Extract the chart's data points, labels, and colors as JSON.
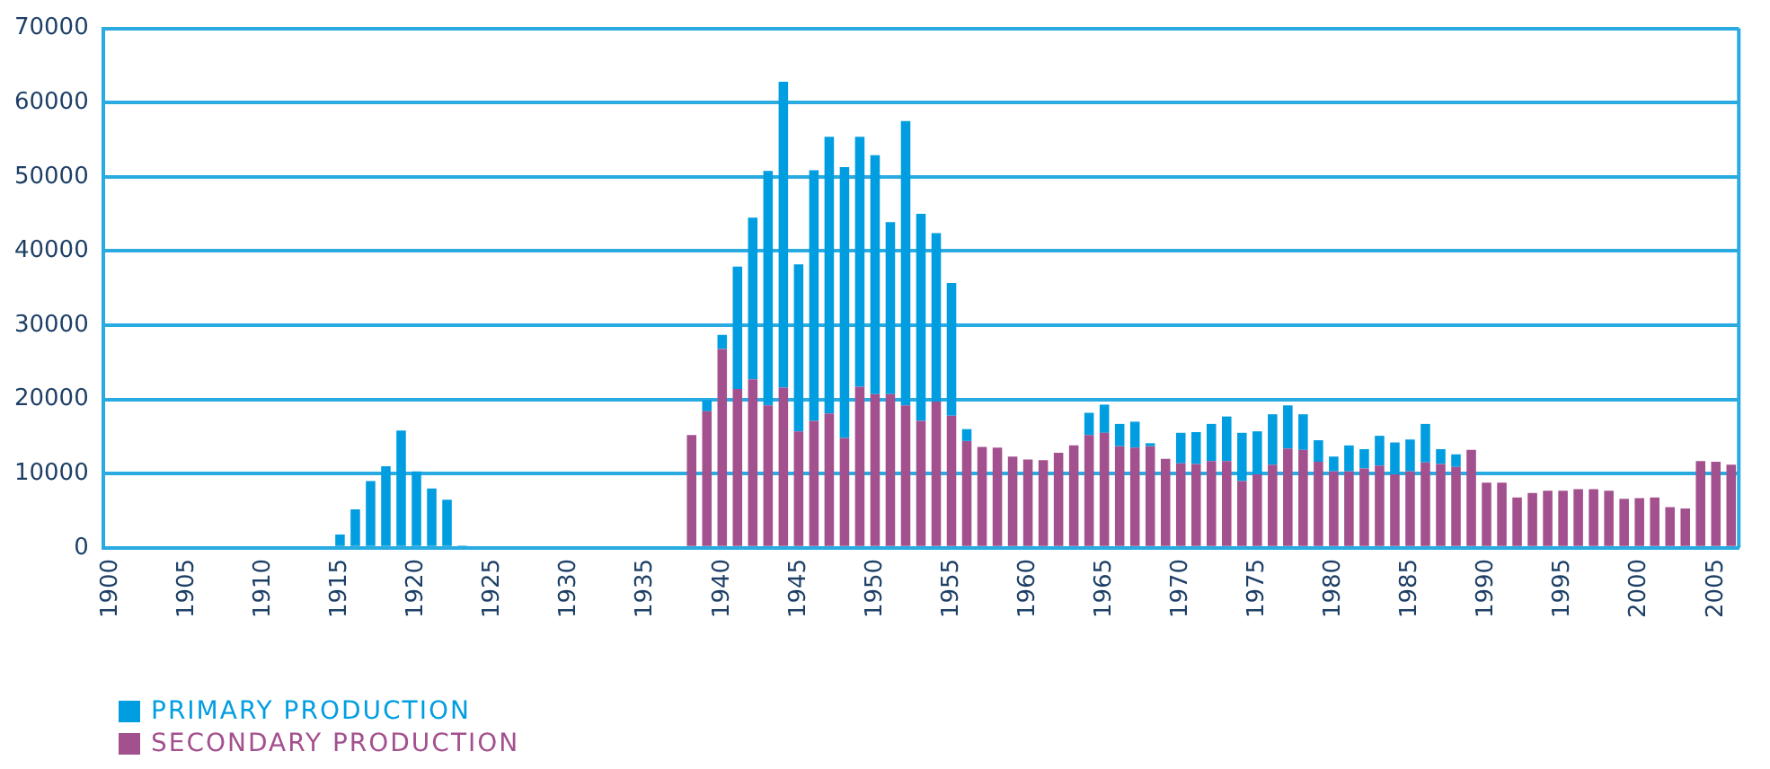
{
  "chart_data": {
    "type": "bar",
    "stacked": true,
    "categories": [
      "1900",
      null,
      null,
      null,
      null,
      "1905",
      null,
      null,
      null,
      null,
      "1910",
      null,
      null,
      null,
      null,
      "1915",
      null,
      null,
      null,
      null,
      "1920",
      null,
      null,
      null,
      null,
      "1925",
      null,
      null,
      null,
      null,
      "1930",
      null,
      null,
      null,
      null,
      "1935",
      null,
      null,
      null,
      null,
      "1940",
      null,
      null,
      null,
      null,
      "1945",
      null,
      null,
      null,
      null,
      "1950",
      null,
      null,
      null,
      null,
      "1955",
      null,
      null,
      null,
      null,
      "1960",
      null,
      null,
      null,
      null,
      "1965",
      null,
      null,
      null,
      null,
      "1970",
      null,
      null,
      null,
      null,
      "1975",
      null,
      null,
      null,
      null,
      "1980",
      null,
      null,
      null,
      null,
      "1985",
      null,
      null,
      null,
      null,
      "1990",
      null,
      null,
      null,
      null,
      "1995",
      null,
      null,
      null,
      null,
      "2000",
      null,
      null,
      null,
      null,
      "2005",
      null
    ],
    "series": [
      {
        "name": "SECONDARY PRODUCTION",
        "color": "#a3508f",
        "values": [
          null,
          null,
          null,
          null,
          null,
          null,
          null,
          null,
          null,
          null,
          null,
          null,
          null,
          null,
          null,
          null,
          null,
          null,
          null,
          null,
          null,
          null,
          null,
          null,
          null,
          null,
          null,
          null,
          null,
          null,
          null,
          null,
          null,
          null,
          null,
          null,
          null,
          null,
          15200,
          18400,
          26800,
          21400,
          22700,
          19200,
          21600,
          15700,
          17100,
          18100,
          14800,
          21700,
          20700,
          20700,
          19200,
          17100,
          19700,
          17800,
          14400,
          13600,
          13500,
          12300,
          11900,
          11800,
          12800,
          13800,
          15200,
          15500,
          13700,
          13500,
          13700,
          12000,
          11400,
          11300,
          11700,
          11700,
          9000,
          9900,
          11200,
          13400,
          13200,
          11600,
          10300,
          10300,
          10700,
          11100,
          9900,
          10300,
          11500,
          11300,
          10900,
          13200,
          8800,
          8800,
          6800,
          7400,
          7700,
          7700,
          7900,
          7900,
          7700,
          6600,
          6700,
          6800,
          5500,
          5300,
          11700,
          11600,
          11200
        ]
      },
      {
        "name": "PRIMARY PRODUCTION",
        "color": "#009ee0",
        "values": [
          null,
          null,
          null,
          null,
          null,
          null,
          null,
          null,
          null,
          null,
          null,
          null,
          null,
          null,
          null,
          1800,
          5200,
          9000,
          11000,
          15800,
          10300,
          8000,
          6500,
          300,
          null,
          null,
          null,
          null,
          null,
          null,
          null,
          null,
          null,
          null,
          null,
          null,
          null,
          null,
          null,
          1500,
          1900,
          16500,
          21800,
          31600,
          41200,
          22500,
          33800,
          37300,
          36500,
          33700,
          32200,
          23200,
          38300,
          27900,
          22700,
          17900,
          1600,
          null,
          null,
          null,
          null,
          null,
          null,
          null,
          3000,
          3800,
          3000,
          3500,
          400,
          null,
          4100,
          4300,
          5000,
          6000,
          6500,
          5800,
          6800,
          5800,
          4800,
          2900,
          2000,
          3500,
          2600,
          4000,
          4300,
          4300,
          5200,
          2000,
          1700,
          null,
          null,
          null,
          null,
          null,
          null,
          null,
          null,
          null,
          null,
          null,
          null,
          null,
          null,
          null,
          null,
          null,
          null
        ]
      }
    ],
    "ylim": [
      0,
      70000
    ],
    "yticks": [
      0,
      10000,
      20000,
      30000,
      40000,
      50000,
      60000,
      70000
    ],
    "grid": "y",
    "legend": "bottom left"
  }
}
